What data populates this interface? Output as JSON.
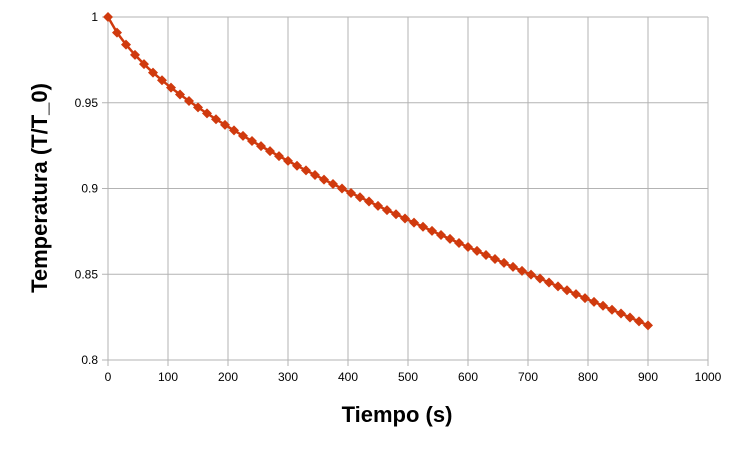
{
  "chart_data": {
    "type": "line",
    "xlabel": "Tiempo (s)",
    "ylabel": "Temperatura (T/T_0)",
    "xlim": [
      0,
      1000
    ],
    "ylim": [
      0.8,
      1
    ],
    "x_ticks": [
      0,
      100,
      200,
      300,
      400,
      500,
      600,
      700,
      800,
      900,
      1000
    ],
    "y_ticks": [
      0.8,
      0.85,
      0.9,
      0.95,
      1
    ],
    "x_tick_labels": [
      "0",
      "100",
      "200",
      "300",
      "400",
      "500",
      "600",
      "700",
      "800",
      "900",
      "1000"
    ],
    "y_tick_labels": [
      "0.8",
      "0.85",
      "0.9",
      "0.95",
      "1"
    ],
    "grid": true,
    "series": [
      {
        "color": "#d03a0e",
        "marker": "diamond",
        "x": [
          0,
          15,
          30,
          45,
          60,
          75,
          90,
          105,
          120,
          135,
          150,
          165,
          180,
          195,
          210,
          225,
          240,
          255,
          270,
          285,
          300,
          315,
          330,
          345,
          360,
          375,
          390,
          405,
          420,
          435,
          450,
          465,
          480,
          495,
          510,
          525,
          540,
          555,
          570,
          585,
          600,
          615,
          630,
          645,
          660,
          675,
          690,
          705,
          720,
          735,
          750,
          765,
          780,
          795,
          810,
          825,
          840,
          855,
          870,
          885,
          900
        ],
        "y": [
          1.0,
          0.9909,
          0.9839,
          0.9779,
          0.9725,
          0.9676,
          0.9631,
          0.9588,
          0.9548,
          0.951,
          0.9473,
          0.9438,
          0.9404,
          0.9371,
          0.9339,
          0.9307,
          0.9277,
          0.9247,
          0.9218,
          0.9189,
          0.9161,
          0.9133,
          0.9106,
          0.9079,
          0.9052,
          0.9026,
          0.9,
          0.8974,
          0.8949,
          0.8924,
          0.8899,
          0.8874,
          0.885,
          0.8825,
          0.8801,
          0.8777,
          0.8753,
          0.8729,
          0.8706,
          0.8682,
          0.8659,
          0.8636,
          0.8612,
          0.8589,
          0.8566,
          0.8543,
          0.852,
          0.8498,
          0.8475,
          0.8452,
          0.8429,
          0.8407,
          0.8384,
          0.8361,
          0.8339,
          0.8316,
          0.8293,
          0.8271,
          0.8248,
          0.8225,
          0.8202
        ]
      }
    ]
  }
}
